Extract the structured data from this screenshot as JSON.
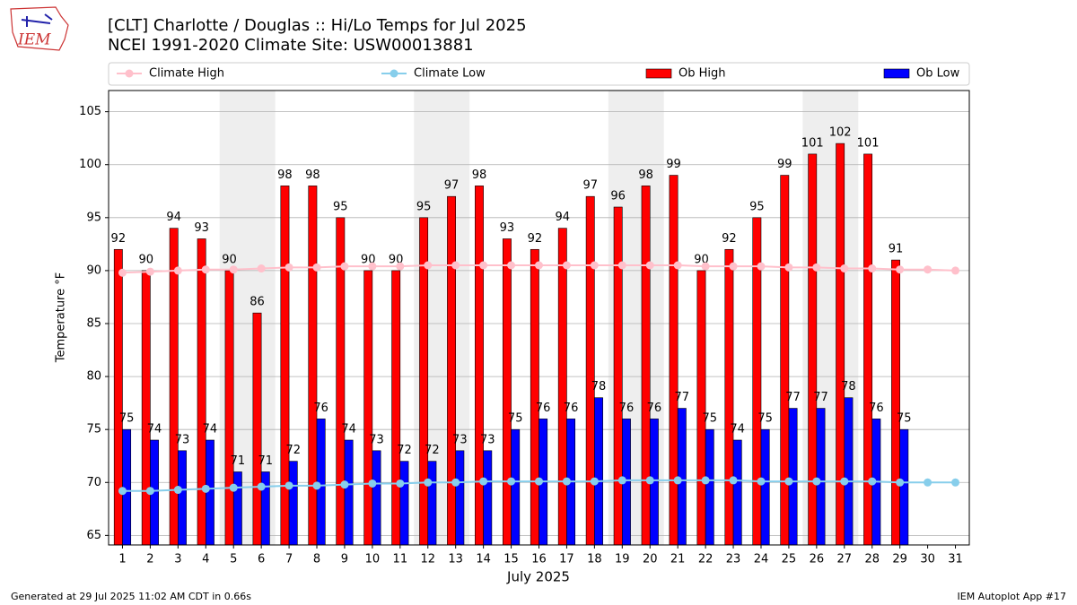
{
  "logo": "IEM",
  "footer_left": "Generated at 29 Jul 2025 11:02 AM CDT in 0.66s",
  "footer_right": "IEM Autoplot App #17",
  "chart_data": {
    "type": "bar",
    "title": "[CLT] Charlotte / Douglas :: Hi/Lo Temps for Jul 2025",
    "subtitle": "NCEI 1991-2020 Climate Site: USW00013881",
    "xlabel": "July 2025",
    "ylabel": "Temperature °F",
    "categories": [
      "1",
      "2",
      "3",
      "4",
      "5",
      "6",
      "7",
      "8",
      "9",
      "10",
      "11",
      "12",
      "13",
      "14",
      "15",
      "16",
      "17",
      "18",
      "19",
      "20",
      "21",
      "22",
      "23",
      "24",
      "25",
      "26",
      "27",
      "28",
      "29",
      "30",
      "31"
    ],
    "ylim": [
      64.1,
      107
    ],
    "yticks": [
      65,
      70,
      75,
      80,
      85,
      90,
      95,
      100,
      105
    ],
    "grid": true,
    "legend": "top",
    "series": [
      {
        "name": "Climate High",
        "type": "line",
        "color": "#ffc0cb",
        "values": [
          89.8,
          89.9,
          90.0,
          90.1,
          90.1,
          90.2,
          90.3,
          90.3,
          90.4,
          90.4,
          90.4,
          90.5,
          90.5,
          90.5,
          90.5,
          90.5,
          90.5,
          90.5,
          90.5,
          90.5,
          90.5,
          90.4,
          90.4,
          90.4,
          90.3,
          90.3,
          90.2,
          90.2,
          90.1,
          90.1,
          90.0
        ]
      },
      {
        "name": "Climate Low",
        "type": "line",
        "color": "#87ceeb",
        "values": [
          69.2,
          69.2,
          69.3,
          69.4,
          69.5,
          69.6,
          69.7,
          69.7,
          69.8,
          69.9,
          69.9,
          70.0,
          70.0,
          70.1,
          70.1,
          70.1,
          70.1,
          70.1,
          70.2,
          70.2,
          70.2,
          70.2,
          70.2,
          70.1,
          70.1,
          70.1,
          70.1,
          70.1,
          70.0,
          70.0,
          70.0
        ]
      },
      {
        "name": "Ob High",
        "type": "bar",
        "color": "#ff0000",
        "values": [
          92,
          90,
          94,
          93,
          90,
          86,
          98,
          98,
          95,
          90,
          90,
          95,
          97,
          98,
          93,
          92,
          94,
          97,
          96,
          98,
          99,
          90,
          92,
          95,
          99,
          101,
          102,
          101,
          91,
          null,
          null
        ]
      },
      {
        "name": "Ob Low",
        "type": "bar",
        "color": "#0000ff",
        "values": [
          75,
          74,
          73,
          74,
          71,
          71,
          72,
          76,
          74,
          73,
          72,
          72,
          73,
          73,
          75,
          76,
          76,
          78,
          76,
          76,
          77,
          75,
          74,
          75,
          77,
          77,
          78,
          76,
          75,
          null,
          null
        ]
      }
    ]
  }
}
